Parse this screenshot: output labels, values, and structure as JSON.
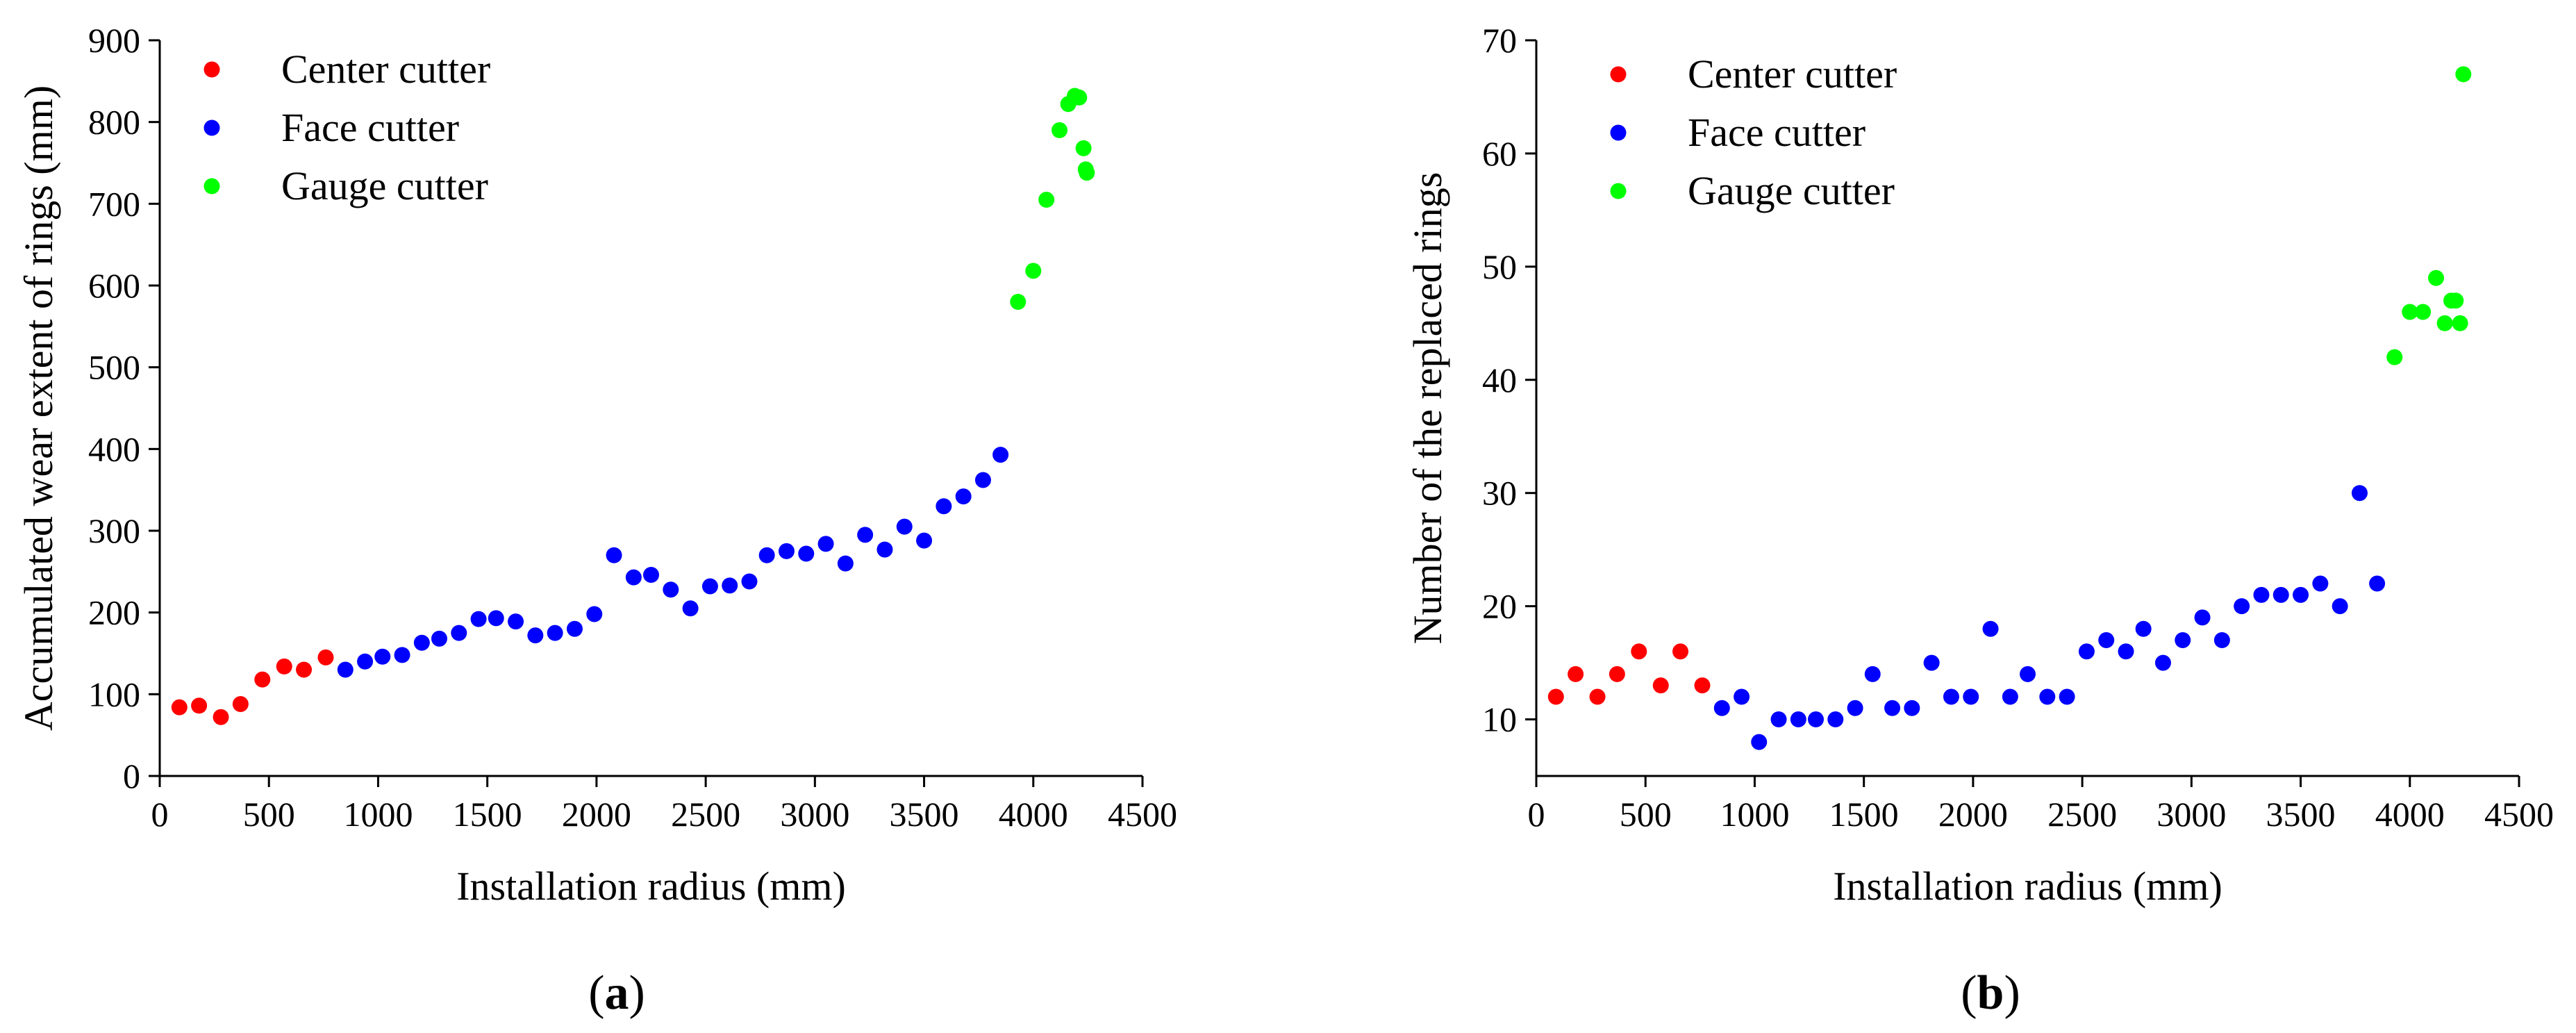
{
  "chart_data": [
    {
      "type": "scatter",
      "panel_label": "a",
      "title": "",
      "xlabel": "Installation radius (mm)",
      "ylabel": "Accumulated wear extent of rings (mm)",
      "xlim": [
        0,
        4500
      ],
      "ylim": [
        0,
        900
      ],
      "xticks": [
        0,
        500,
        1000,
        1500,
        2000,
        2500,
        3000,
        3500,
        4000,
        4500
      ],
      "yticks": [
        0,
        100,
        200,
        300,
        400,
        500,
        600,
        700,
        800,
        900
      ],
      "legend_position": "top-left",
      "series": [
        {
          "name": "Center cutter",
          "color": "#ff0000",
          "points": [
            [
              90,
              84
            ],
            [
              180,
              86
            ],
            [
              280,
              72
            ],
            [
              370,
              88
            ],
            [
              470,
              118
            ],
            [
              570,
              134
            ],
            [
              660,
              130
            ],
            [
              760,
              145
            ]
          ]
        },
        {
          "name": "Face cutter",
          "color": "#0000ff",
          "points": [
            [
              850,
              130
            ],
            [
              940,
              140
            ],
            [
              1020,
              146
            ],
            [
              1110,
              148
            ],
            [
              1200,
              163
            ],
            [
              1280,
              168
            ],
            [
              1370,
              175
            ],
            [
              1460,
              192
            ],
            [
              1540,
              193
            ],
            [
              1630,
              189
            ],
            [
              1720,
              172
            ],
            [
              1810,
              175
            ],
            [
              1900,
              180
            ],
            [
              1990,
              198
            ],
            [
              2080,
              270
            ],
            [
              2170,
              243
            ],
            [
              2250,
              246
            ],
            [
              2340,
              228
            ],
            [
              2430,
              205
            ],
            [
              2520,
              232
            ],
            [
              2610,
              233
            ],
            [
              2700,
              238
            ],
            [
              2780,
              270
            ],
            [
              2870,
              275
            ],
            [
              2960,
              272
            ],
            [
              3050,
              284
            ],
            [
              3140,
              260
            ],
            [
              3230,
              295
            ],
            [
              3320,
              277
            ],
            [
              3410,
              305
            ],
            [
              3500,
              288
            ],
            [
              3590,
              330
            ],
            [
              3680,
              342
            ],
            [
              3770,
              362
            ],
            [
              3850,
              393
            ]
          ]
        },
        {
          "name": "Gauge cutter",
          "color": "#00ff00",
          "points": [
            [
              3930,
              580
            ],
            [
              4000,
              618
            ],
            [
              4060,
              705
            ],
            [
              4120,
              790
            ],
            [
              4160,
              822
            ],
            [
              4190,
              832
            ],
            [
              4210,
              830
            ],
            [
              4230,
              768
            ],
            [
              4240,
              742
            ],
            [
              4245,
              738
            ]
          ]
        }
      ]
    },
    {
      "type": "scatter",
      "panel_label": "b",
      "title": "",
      "xlabel": "Installation radius (mm)",
      "ylabel": "Number of the replaced rings",
      "xlim": [
        0,
        4500
      ],
      "ylim": [
        5,
        70
      ],
      "xticks": [
        0,
        500,
        1000,
        1500,
        2000,
        2500,
        3000,
        3500,
        4000,
        4500
      ],
      "yticks": [
        10,
        20,
        30,
        40,
        50,
        60,
        70
      ],
      "legend_position": "top-left",
      "series": [
        {
          "name": "Center cutter",
          "color": "#ff0000",
          "points": [
            [
              90,
              12
            ],
            [
              180,
              14
            ],
            [
              280,
              12
            ],
            [
              370,
              14
            ],
            [
              470,
              16
            ],
            [
              570,
              13
            ],
            [
              660,
              16
            ],
            [
              760,
              13
            ]
          ]
        },
        {
          "name": "Face cutter",
          "color": "#0000ff",
          "points": [
            [
              850,
              11
            ],
            [
              940,
              12
            ],
            [
              1020,
              8
            ],
            [
              1110,
              10
            ],
            [
              1200,
              10
            ],
            [
              1280,
              10
            ],
            [
              1370,
              10
            ],
            [
              1460,
              11
            ],
            [
              1540,
              14
            ],
            [
              1630,
              11
            ],
            [
              1720,
              11
            ],
            [
              1810,
              15
            ],
            [
              1900,
              12
            ],
            [
              1990,
              12
            ],
            [
              2080,
              18
            ],
            [
              2170,
              12
            ],
            [
              2250,
              14
            ],
            [
              2340,
              12
            ],
            [
              2430,
              12
            ],
            [
              2520,
              16
            ],
            [
              2610,
              17
            ],
            [
              2700,
              16
            ],
            [
              2780,
              18
            ],
            [
              2870,
              15
            ],
            [
              2960,
              17
            ],
            [
              3050,
              19
            ],
            [
              3140,
              17
            ],
            [
              3230,
              20
            ],
            [
              3320,
              21
            ],
            [
              3410,
              21
            ],
            [
              3500,
              21
            ],
            [
              3590,
              22
            ],
            [
              3680,
              20
            ],
            [
              3770,
              30
            ],
            [
              3850,
              22
            ]
          ]
        },
        {
          "name": "Gauge cutter",
          "color": "#00ff00",
          "points": [
            [
              3930,
              42
            ],
            [
              4000,
              46
            ],
            [
              4060,
              46
            ],
            [
              4120,
              49
            ],
            [
              4160,
              45
            ],
            [
              4190,
              47
            ],
            [
              4210,
              47
            ],
            [
              4230,
              45
            ],
            [
              4245,
              67
            ]
          ]
        }
      ]
    }
  ]
}
